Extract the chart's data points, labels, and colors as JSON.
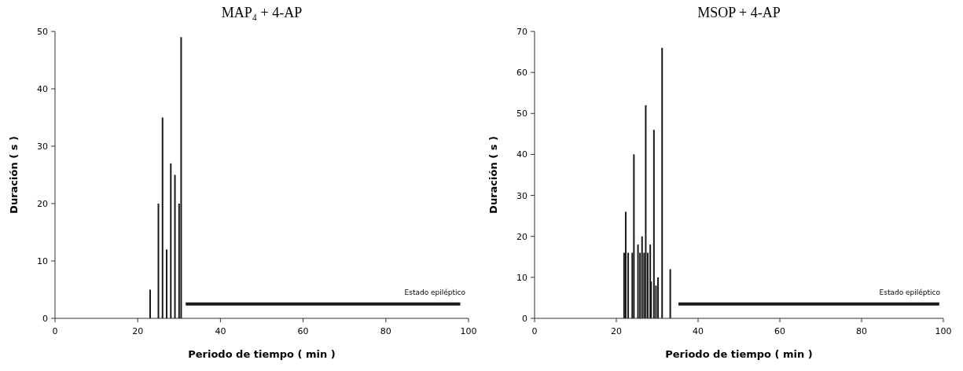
{
  "chart_data": [
    {
      "type": "bar",
      "title": "MAP₄ + 4-AP",
      "xlabel": "Periodo de tiempo ( min )",
      "ylabel": "Duración ( s )",
      "xlim": [
        0,
        100
      ],
      "xticks": [
        0,
        20,
        40,
        60,
        80,
        100
      ],
      "ylim": [
        0,
        50
      ],
      "yticks": [
        0,
        10,
        20,
        30,
        40,
        50
      ],
      "series": [
        {
          "color": "#1a1a1a",
          "x": [
            23,
            25,
            26,
            27,
            28,
            29,
            30,
            30.5
          ],
          "values": [
            5,
            20,
            35,
            12,
            27,
            25,
            20,
            49
          ]
        },
        {
          "type": "line",
          "color": "#1a1a1a",
          "x": [
            31.6,
            98
          ],
          "values": [
            2.5,
            2.5
          ]
        }
      ],
      "annotations": [
        "Estado epiléptico"
      ]
    },
    {
      "type": "bar",
      "title": "MSOP + 4-AP",
      "xlabel": "Periodo de tiempo ( min )",
      "ylabel": "Duración ( s )",
      "xlim": [
        0,
        100
      ],
      "xticks": [
        0,
        20,
        40,
        60,
        80,
        100
      ],
      "ylim": [
        0,
        70
      ],
      "yticks": [
        0,
        10,
        20,
        30,
        40,
        50,
        60,
        70
      ],
      "series": [
        {
          "color": "#1a1a1a",
          "x": [
            21.9,
            22.3,
            22.9,
            23.9,
            24.3,
            25.3,
            25.8,
            26.3,
            26.8,
            27.2,
            27.7,
            28.3,
            28.5,
            29.2,
            29.7,
            30.2,
            31.2,
            33.2
          ],
          "values": [
            16,
            26,
            16,
            16,
            40,
            18,
            16,
            20,
            16,
            52,
            16,
            18,
            9,
            46,
            8,
            10,
            66,
            12
          ]
        },
        {
          "type": "line",
          "color": "#1a1a1a",
          "x": [
            35.2,
            99
          ],
          "values": [
            3.5,
            3.5
          ]
        }
      ],
      "annotations": [
        "Estado epiléptico"
      ]
    }
  ]
}
